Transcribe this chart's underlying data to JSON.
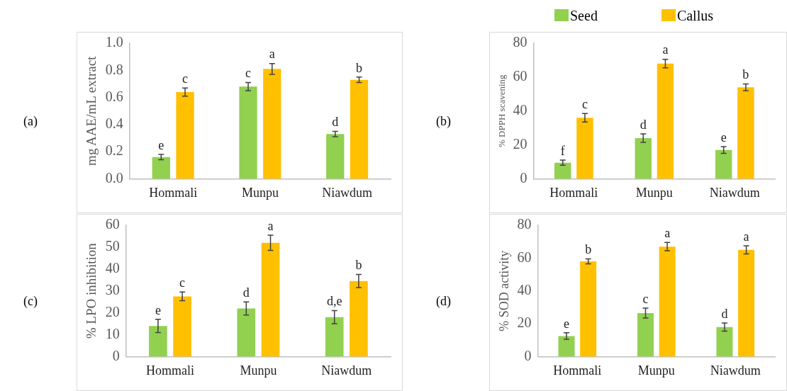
{
  "chart_data": [
    {
      "type": "bar",
      "annotations": [
        "(a)"
      ],
      "ylabel": "mg AAE/mL extract",
      "categories": [
        "Hommali",
        "Munpu",
        "Niawdum"
      ],
      "ylim": [
        0,
        1
      ],
      "yticks": [
        {
          "value": 0,
          "label": "0.0"
        },
        {
          "value": 0.2,
          "label": "0.2"
        },
        {
          "value": 0.4,
          "label": "0.4"
        },
        {
          "value": 0.6,
          "label": "0.6"
        },
        {
          "value": 0.8,
          "label": "0.8"
        },
        {
          "value": 1,
          "label": "1.0"
        }
      ],
      "series": [
        {
          "color": "#92d050",
          "values": [
            0.16,
            0.68,
            0.33
          ],
          "errors": [
            0.02,
            0.03,
            0.02
          ],
          "value_labels": [
            "e",
            "c",
            "d"
          ]
        },
        {
          "color": "#ffc000",
          "values": [
            0.64,
            0.81,
            0.73
          ],
          "errors": [
            0.03,
            0.04,
            0.02
          ],
          "value_labels": [
            "c",
            "a",
            "b"
          ]
        }
      ]
    },
    {
      "type": "bar",
      "annotations": [
        "(b)"
      ],
      "ylabel": "% DPPH scavening",
      "categories": [
        "Hommali",
        "Munpu",
        "Niawdum"
      ],
      "ylim": [
        0,
        80
      ],
      "yticks": [
        0,
        20,
        40,
        60,
        80
      ],
      "legend": "top",
      "series": [
        {
          "name": "Seed",
          "color": "#92d050",
          "values": [
            9.5,
            24,
            17
          ],
          "errors": [
            1.5,
            2.5,
            2
          ],
          "value_labels": [
            "f",
            "d",
            "e"
          ]
        },
        {
          "name": "Callus",
          "color": "#ffc000",
          "values": [
            36,
            68,
            54
          ],
          "errors": [
            2.5,
            2.5,
            2
          ],
          "value_labels": [
            "c",
            "a",
            "b"
          ]
        }
      ]
    },
    {
      "type": "bar",
      "annotations": [
        "(c)"
      ],
      "ylabel": "% LPO inhibition",
      "categories": [
        "Hommali",
        "Munpu",
        "Niawdum"
      ],
      "ylim": [
        0,
        60
      ],
      "yticks": [
        0,
        10,
        20,
        30,
        40,
        50,
        60
      ],
      "series": [
        {
          "color": "#92d050",
          "values": [
            14,
            22,
            18
          ],
          "errors": [
            3,
            3,
            3
          ],
          "value_labels": [
            "e",
            "d",
            "d,e"
          ]
        },
        {
          "color": "#ffc000",
          "values": [
            27.5,
            52,
            34.5
          ],
          "errors": [
            2,
            3.5,
            3
          ],
          "value_labels": [
            "c",
            "a",
            "b"
          ]
        }
      ]
    },
    {
      "type": "bar",
      "annotations": [
        "(d)"
      ],
      "ylabel": "% SOD activity",
      "categories": [
        "Hommali",
        "Munpu",
        "Niawdum"
      ],
      "ylim": [
        0,
        80
      ],
      "yticks": [
        0,
        20,
        40,
        60,
        80
      ],
      "series": [
        {
          "color": "#92d050",
          "values": [
            12.5,
            26.5,
            18
          ],
          "errors": [
            2,
            3,
            2.5
          ],
          "value_labels": [
            "e",
            "c",
            "d"
          ]
        },
        {
          "color": "#ffc000",
          "values": [
            58,
            67,
            65
          ],
          "errors": [
            1.5,
            2.5,
            2.5
          ],
          "value_labels": [
            "b",
            "a",
            "a"
          ]
        }
      ]
    }
  ]
}
